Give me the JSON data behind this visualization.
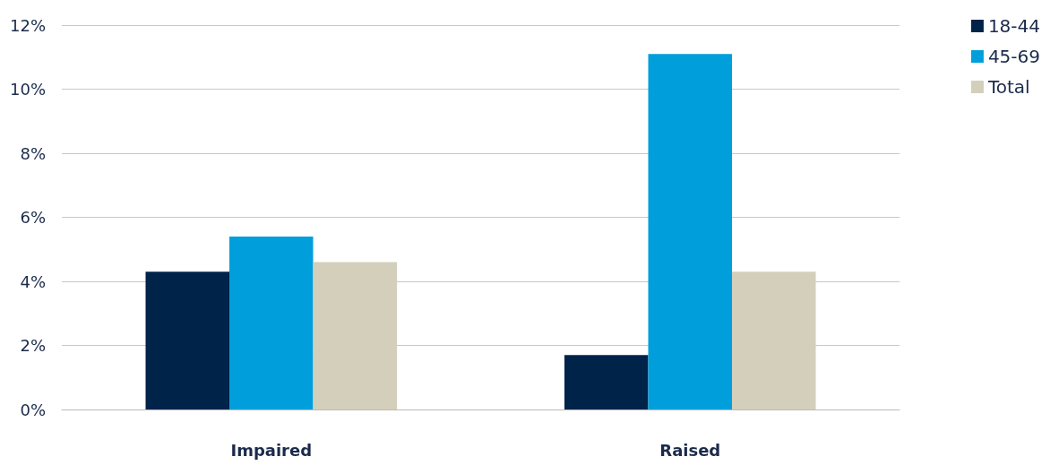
{
  "chart_data": {
    "type": "bar",
    "categories": [
      "Impaired",
      "Raised"
    ],
    "series": [
      {
        "name": "18-44",
        "color": "#00234a",
        "values": [
          4.3,
          1.7
        ]
      },
      {
        "name": "45-69",
        "color": "#009fdb",
        "values": [
          5.4,
          11.1
        ]
      },
      {
        "name": "Total",
        "color": "#d3cfbb",
        "values": [
          4.6,
          4.3
        ]
      }
    ],
    "ylim": [
      0,
      12
    ],
    "yticks": [
      {
        "value": 0,
        "label": "0%"
      },
      {
        "value": 2,
        "label": "2%"
      },
      {
        "value": 4,
        "label": "4%"
      },
      {
        "value": 6,
        "label": "6%"
      },
      {
        "value": 8,
        "label": "8%"
      },
      {
        "value": 10,
        "label": "10%"
      },
      {
        "value": 12,
        "label": "12%"
      }
    ],
    "grid": "y",
    "legend": "top right"
  }
}
